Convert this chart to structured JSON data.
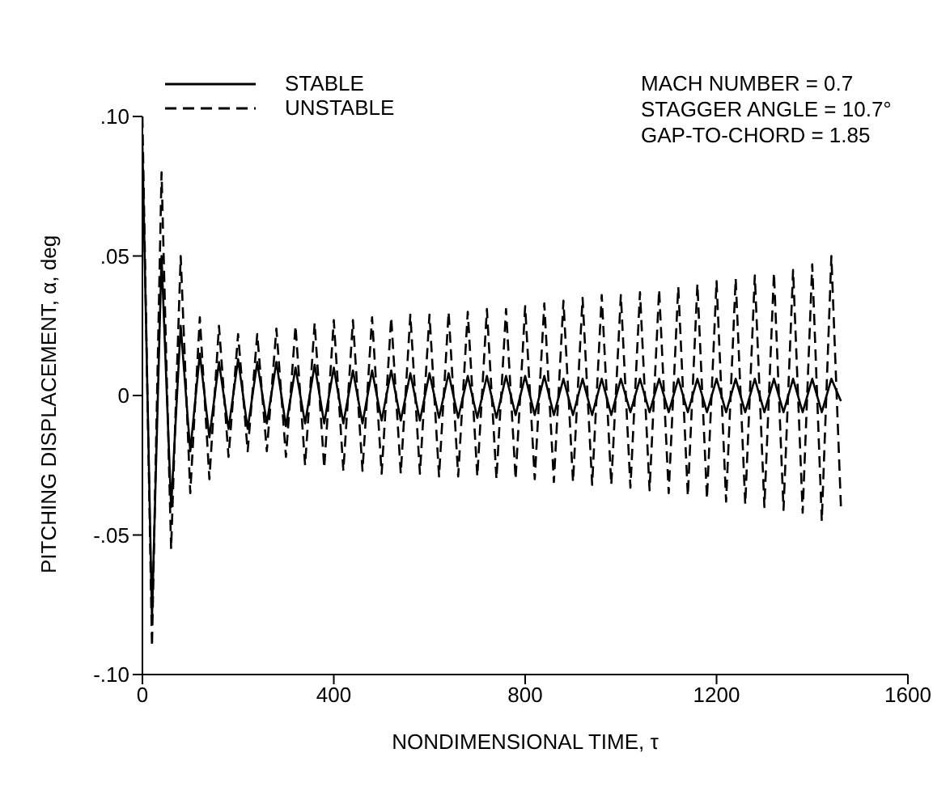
{
  "chart_data": {
    "type": "line",
    "xlabel": "NONDIMENSIONAL TIME, τ",
    "ylabel": "PITCHING DISPLACEMENT, α, deg",
    "annotations": [
      "MACH NUMBER = 0.7",
      "STAGGER ANGLE = 10.7°",
      "GAP-TO-CHORD = 1.85"
    ],
    "x": [
      0,
      20,
      40,
      60,
      80,
      100,
      120,
      140,
      160,
      180,
      200,
      220,
      240,
      260,
      280,
      300,
      320,
      340,
      360,
      380,
      400,
      420,
      440,
      460,
      480,
      500,
      520,
      540,
      560,
      580,
      600,
      620,
      640,
      660,
      680,
      700,
      720,
      740,
      760,
      780,
      800,
      820,
      840,
      860,
      880,
      900,
      920,
      940,
      960,
      980,
      1000,
      1020,
      1040,
      1060,
      1080,
      1100,
      1120,
      1140,
      1160,
      1180,
      1200,
      1220,
      1240,
      1260,
      1280,
      1300,
      1320,
      1340,
      1360,
      1380,
      1400,
      1420,
      1440,
      1460
    ],
    "series": [
      {
        "name": "STABLE",
        "color": "#000000",
        "line_style": "solid",
        "values": [
          0.09,
          -0.08,
          0.05,
          -0.04,
          0.025,
          -0.02,
          0.015,
          -0.015,
          0.012,
          -0.012,
          0.013,
          -0.012,
          0.012,
          -0.01,
          0.012,
          -0.011,
          0.01,
          -0.01,
          0.011,
          -0.01,
          0.01,
          -0.01,
          0.009,
          -0.01,
          0.009,
          -0.009,
          0.009,
          -0.009,
          0.008,
          -0.009,
          0.008,
          -0.008,
          0.008,
          -0.008,
          0.007,
          -0.008,
          0.007,
          -0.008,
          0.007,
          -0.007,
          0.007,
          -0.007,
          0.007,
          -0.007,
          0.006,
          -0.007,
          0.006,
          -0.007,
          0.006,
          -0.007,
          0.006,
          -0.006,
          0.006,
          -0.006,
          0.006,
          -0.006,
          0.006,
          -0.006,
          0.006,
          -0.006,
          0.006,
          -0.006,
          0.006,
          -0.006,
          0.006,
          -0.006,
          0.006,
          -0.006,
          0.006,
          -0.006,
          0.006,
          -0.006,
          0.006,
          -0.002
        ]
      },
      {
        "name": "UNSTABLE",
        "color": "#000000",
        "line_style": "dashed",
        "values": [
          0.1,
          -0.09,
          0.08,
          -0.055,
          0.05,
          -0.035,
          0.028,
          -0.03,
          0.025,
          -0.022,
          0.022,
          -0.02,
          0.022,
          -0.02,
          0.024,
          -0.022,
          0.025,
          -0.025,
          0.026,
          -0.026,
          0.027,
          -0.027,
          0.027,
          -0.027,
          0.028,
          -0.028,
          0.028,
          -0.028,
          0.029,
          -0.028,
          0.029,
          -0.029,
          0.03,
          -0.029,
          0.03,
          -0.029,
          0.031,
          -0.03,
          0.031,
          -0.03,
          0.032,
          -0.03,
          0.033,
          -0.031,
          0.034,
          -0.031,
          0.035,
          -0.032,
          0.036,
          -0.032,
          0.036,
          -0.033,
          0.037,
          -0.034,
          0.038,
          -0.035,
          0.039,
          -0.036,
          0.04,
          -0.037,
          0.041,
          -0.038,
          0.042,
          -0.039,
          0.043,
          -0.04,
          0.044,
          -0.041,
          0.045,
          -0.042,
          0.047,
          -0.045,
          0.05,
          -0.04
        ]
      }
    ],
    "xlim": [
      0,
      1600
    ],
    "xticks": [
      0,
      400,
      800,
      1200,
      1600
    ],
    "ylim": [
      -0.1,
      0.1
    ],
    "yticks": [
      {
        "value": -0.1,
        "label": "-.10"
      },
      {
        "value": -0.05,
        "label": "-.05"
      },
      0,
      {
        "value": 0.05,
        "label": ".05"
      },
      {
        "value": 0.1,
        "label": ".10"
      }
    ],
    "grid": false,
    "legend": "top left",
    "marker": "none"
  }
}
